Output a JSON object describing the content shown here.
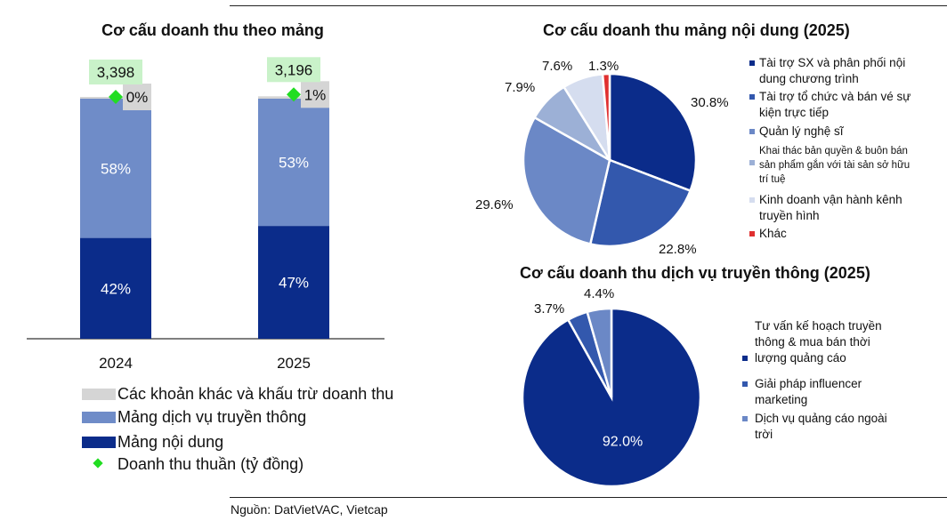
{
  "colors": {
    "content": "#0b2c8a",
    "media": "#6f8cc8",
    "other": "#d5d5d5",
    "marker": "#22dd22",
    "total_bg": "#c9f2c9",
    "pie1": [
      "#0b2c8a",
      "#3358ad",
      "#6b88c6",
      "#9cb0d6",
      "#d5ddef",
      "#e03030"
    ],
    "pie2": [
      "#0b2c8a",
      "#3358ad",
      "#6b88c6"
    ]
  },
  "source": "Nguồn: DatVietVAC, Vietcap",
  "chart_data": [
    {
      "type": "bar",
      "stacked": true,
      "title": "Cơ cấu doanh thu theo mảng",
      "categories": [
        "2024",
        "2025"
      ],
      "series": [
        {
          "name": "Mảng nội dung",
          "values": [
            42,
            47
          ],
          "labels": [
            "42%",
            "47%"
          ]
        },
        {
          "name": "Mảng dịch vụ truyền thông",
          "values": [
            58,
            53
          ],
          "labels": [
            "58%",
            "53%"
          ]
        },
        {
          "name": "Các khoản khác và khấu trừ doanh thu",
          "values": [
            0,
            1
          ],
          "labels": [
            "0%",
            "1%"
          ]
        }
      ],
      "marker_series": {
        "name": "Doanh thu thuần (tỷ đồng)",
        "values": [
          3398,
          3196
        ],
        "labels": [
          "3,398",
          "3,196"
        ]
      },
      "legend_position": "bottom",
      "ylim": [
        0,
        100
      ],
      "grid": false
    },
    {
      "type": "pie",
      "title": "Cơ cấu doanh thu mảng nội dung (2025)",
      "slices": [
        {
          "name": "Tài trợ SX và phân phối nội dung chương trình",
          "value": 30.8,
          "label": "30.8%"
        },
        {
          "name": "Tài trợ tổ chức và bán vé sự kiện trực tiếp",
          "value": 22.8,
          "label": "22.8%"
        },
        {
          "name": "Quản lý nghệ sĩ",
          "value": 29.6,
          "label": "29.6%"
        },
        {
          "name": "Khai thác bản quyền & buôn bán sản phẩm gắn với tài sản sở hữu trí tuệ",
          "value": 7.9,
          "label": "7.9%"
        },
        {
          "name": "Kinh doanh vận hành kênh truyền hình",
          "value": 7.6,
          "label": "7.6%"
        },
        {
          "name": "Khác",
          "value": 1.3,
          "label": "1.3%"
        }
      ],
      "legend_position": "right"
    },
    {
      "type": "pie",
      "title": "Cơ cấu doanh thu dịch vụ truyền thông (2025)",
      "slices": [
        {
          "name": "Tư vấn kế hoạch truyền thông & mua bán thời lượng quảng cáo",
          "value": 92.0,
          "label": "92.0%"
        },
        {
          "name": "Giải pháp influencer marketing",
          "value": 3.7,
          "label": "3.7%"
        },
        {
          "name": "Dịch vụ quảng cáo ngoài trời",
          "value": 4.4,
          "label": "4.4%"
        }
      ],
      "legend_position": "right"
    }
  ]
}
